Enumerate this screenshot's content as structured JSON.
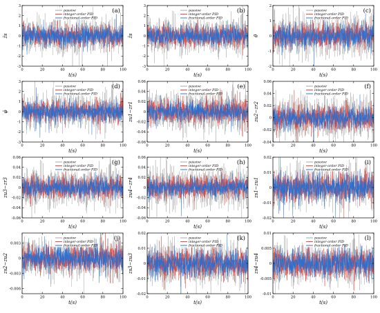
{
  "legend": {
    "entries": [
      {
        "name": "passive",
        "color": "#9e9e9e"
      },
      {
        "name": "integer-order PID",
        "color": "#e8382f"
      },
      {
        "name": "fractional-order PID",
        "color": "#1f6fd6"
      }
    ]
  },
  "chart_data": [
    {
      "type": "line",
      "label": "(a)",
      "xlabel": "t(s)",
      "ylabel": "z̈s",
      "xlim": [
        0,
        100
      ],
      "ylim": [
        -3,
        3
      ],
      "xticks": [
        0,
        20,
        40,
        60,
        80,
        100
      ],
      "yticks": [
        -3,
        -2,
        -1,
        0,
        1,
        2,
        3
      ],
      "legend_position": "top",
      "series_amplitude": {
        "passive": 1.6,
        "integer-order PID": 0.9,
        "fractional-order PID": 0.9
      }
    },
    {
      "type": "line",
      "label": "(b)",
      "xlabel": "t(s)",
      "ylabel": "z̈s",
      "xlim": [
        0,
        100
      ],
      "ylim": [
        -3,
        3
      ],
      "xticks": [
        0,
        20,
        40,
        60,
        80,
        100
      ],
      "yticks": [
        -3,
        -2,
        -1,
        0,
        1,
        2,
        3
      ],
      "legend_position": "top",
      "series_amplitude": {
        "passive": 1.6,
        "integer-order PID": 0.9,
        "fractional-order PID": 0.9
      }
    },
    {
      "type": "line",
      "label": "(c)",
      "xlabel": "t(s)",
      "ylabel": "θ̈",
      "xlim": [
        0,
        100
      ],
      "ylim": [
        -2,
        2
      ],
      "xticks": [
        0,
        20,
        40,
        60,
        80,
        100
      ],
      "yticks": [
        -2,
        -1,
        0,
        1,
        2
      ],
      "legend_position": "top",
      "series_amplitude": {
        "passive": 1.2,
        "integer-order PID": 0.7,
        "fractional-order PID": 0.7
      }
    },
    {
      "type": "line",
      "label": "(d)",
      "xlabel": "t(s)",
      "ylabel": "φ̈",
      "xlim": [
        0,
        100
      ],
      "ylim": [
        -3,
        3
      ],
      "xticks": [
        0,
        20,
        40,
        60,
        80,
        100
      ],
      "yticks": [
        -3,
        -2,
        -1,
        0,
        1,
        2,
        3
      ],
      "legend_position": "top",
      "series_amplitude": {
        "passive": 1.6,
        "integer-order PID": 0.9,
        "fractional-order PID": 0.9
      }
    },
    {
      "type": "line",
      "label": "(e)",
      "xlabel": "t(s)",
      "ylabel": "zu1−zr1",
      "xlim": [
        0,
        100
      ],
      "ylim": [
        -0.06,
        0.06
      ],
      "xticks": [
        0,
        20,
        40,
        60,
        80,
        100
      ],
      "yticks": [
        -0.06,
        -0.04,
        -0.02,
        0.0,
        0.02,
        0.04,
        0.06
      ],
      "legend_position": "top",
      "series_amplitude": {
        "passive": 0.035,
        "integer-order PID": 0.02,
        "fractional-order PID": 0.018
      }
    },
    {
      "type": "line",
      "label": "(f)",
      "xlabel": "t(s)",
      "ylabel": "zu2−zr2",
      "xlim": [
        0,
        100
      ],
      "ylim": [
        -0.04,
        0.06
      ],
      "xticks": [
        0,
        20,
        40,
        60,
        80,
        100
      ],
      "yticks": [
        -0.04,
        -0.02,
        0.0,
        0.02,
        0.04,
        0.06
      ],
      "legend_position": "top",
      "series_amplitude": {
        "passive": 0.03,
        "integer-order PID": 0.018,
        "fractional-order PID": 0.016
      }
    },
    {
      "type": "line",
      "label": "(g)",
      "xlabel": "t(s)",
      "ylabel": "zu3−zr3",
      "xlim": [
        0,
        100
      ],
      "ylim": [
        -0.06,
        0.06
      ],
      "xticks": [
        0,
        20,
        40,
        60,
        80,
        100
      ],
      "yticks": [
        -0.06,
        -0.04,
        -0.02,
        0.0,
        0.02,
        0.04,
        0.06
      ],
      "legend_position": "top",
      "series_amplitude": {
        "passive": 0.035,
        "integer-order PID": 0.02,
        "fractional-order PID": 0.018
      }
    },
    {
      "type": "line",
      "label": "(h)",
      "xlabel": "t(s)",
      "ylabel": "zu4−zr4",
      "xlim": [
        0,
        100
      ],
      "ylim": [
        -0.06,
        0.06
      ],
      "xticks": [
        0,
        20,
        40,
        60,
        80,
        100
      ],
      "yticks": [
        -0.06,
        -0.04,
        -0.02,
        0.0,
        0.02,
        0.04,
        0.06
      ],
      "legend_position": "top",
      "series_amplitude": {
        "passive": 0.035,
        "integer-order PID": 0.02,
        "fractional-order PID": 0.016
      }
    },
    {
      "type": "line",
      "label": "(i)",
      "xlabel": "t(s)",
      "ylabel": "zs1−zu1",
      "xlim": [
        0,
        100
      ],
      "ylim": [
        -0.02,
        0.02
      ],
      "xticks": [
        0,
        20,
        40,
        60,
        80,
        100
      ],
      "yticks": [
        -0.02,
        -0.01,
        0.0,
        0.01,
        0.02
      ],
      "legend_position": "top",
      "series_amplitude": {
        "passive": 0.012,
        "integer-order PID": 0.008,
        "fractional-order PID": 0.008
      }
    },
    {
      "type": "line",
      "label": "(j)",
      "xlabel": "t(s)",
      "ylabel": "zs2−zu2",
      "xlim": [
        0,
        100
      ],
      "ylim": [
        -0.007,
        0.005
      ],
      "xticks": [
        0,
        20,
        40,
        60,
        80,
        100
      ],
      "yticks": [
        -0.006,
        -0.003,
        0.0,
        0.003
      ],
      "legend_position": "top",
      "series_amplitude": {
        "passive": 0.0035,
        "integer-order PID": 0.0022,
        "fractional-order PID": 0.0022
      }
    },
    {
      "type": "line",
      "label": "(k)",
      "xlabel": "t(s)",
      "ylabel": "zs3−zu3",
      "xlim": [
        0,
        100
      ],
      "ylim": [
        -0.02,
        0.02
      ],
      "xticks": [
        0,
        20,
        40,
        60,
        80,
        100
      ],
      "yticks": [
        -0.02,
        -0.01,
        0.0,
        0.01,
        0.02
      ],
      "legend_position": "top",
      "series_amplitude": {
        "passive": 0.012,
        "integer-order PID": 0.008,
        "fractional-order PID": 0.008
      }
    },
    {
      "type": "line",
      "label": "(l)",
      "xlabel": "t(s)",
      "ylabel": "zs4−zu4",
      "xlim": [
        0,
        100
      ],
      "ylim": [
        -0.01,
        0.01
      ],
      "xticks": [
        0,
        20,
        40,
        60,
        80,
        100
      ],
      "yticks": [
        -0.01,
        -0.005,
        0.0,
        0.005,
        0.01
      ],
      "legend_position": "top",
      "series_amplitude": {
        "passive": 0.006,
        "integer-order PID": 0.004,
        "fractional-order PID": 0.004
      }
    }
  ]
}
